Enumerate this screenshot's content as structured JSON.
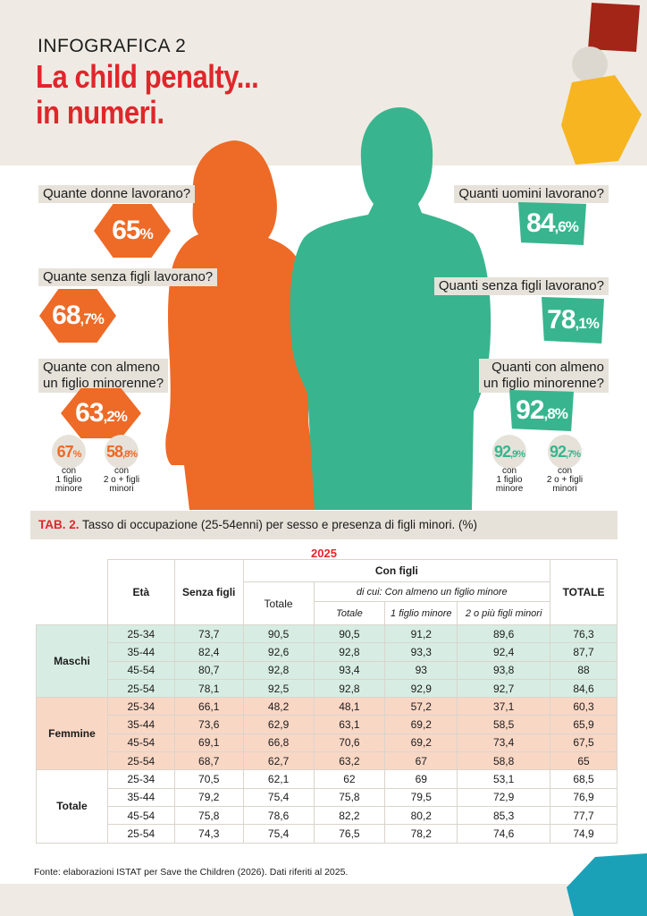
{
  "header": {
    "kicker": "INFOGRAFICA 2",
    "title_line1": "La child penalty...",
    "title_line2": "in numeri."
  },
  "colors": {
    "women": "#ee6a27",
    "men": "#38b58e",
    "accent": "#e0262b",
    "band": "#efebe4"
  },
  "women": {
    "q1": "Quante donne lavorano?",
    "v1_int": "65",
    "v1_pct": "%",
    "q2": "Quante senza figli lavorano?",
    "v2_int": "68",
    "v2_dec": ",7%",
    "q3_line1": "Quante con almeno",
    "q3_line2": "un figlio minorenne?",
    "v3_int": "63",
    "v3_dec": ",2%",
    "s1_int": "67",
    "s1_dec": "%",
    "s1_cap": [
      "con",
      "1 figlio",
      "minore"
    ],
    "s2_int": "58",
    "s2_dec": ",8%",
    "s2_cap": [
      "con",
      "2 o + figli",
      "minori"
    ]
  },
  "men": {
    "q1": "Quanti uomini lavorano?",
    "v1_int": "84",
    "v1_dec": ",6%",
    "q2": "Quanti senza figli lavorano?",
    "v2_int": "78",
    "v2_dec": ",1%",
    "q3_line1": "Quanti con almeno",
    "q3_line2": "un figlio minorenne?",
    "v3_int": "92",
    "v3_dec": ",8%",
    "s1_int": "92",
    "s1_dec": ",9%",
    "s1_cap": [
      "con",
      "1 figlio",
      "minore"
    ],
    "s2_int": "92",
    "s2_dec": ",7%",
    "s2_cap": [
      "con",
      "2 o + figli",
      "minori"
    ]
  },
  "table": {
    "tab_label": "TAB. 2.",
    "caption": "Tasso di occupazione (25-54enni) per sesso e presenza di figli minori. (%)",
    "year": "2025",
    "headers": {
      "eta": "Età",
      "senza_figli": "Senza figli",
      "con_figli": "Con figli",
      "totale_right": "TOTALE",
      "totale": "Totale",
      "di_cui": "di cui: Con almeno un figlio minore",
      "sub_totale": "Totale",
      "sub_1": "1 figlio minore",
      "sub_2": "2 o più figli minori"
    },
    "groups": [
      {
        "name": "Maschi",
        "rows": [
          [
            "25-34",
            "73,7",
            "90,5",
            "90,5",
            "91,2",
            "89,6",
            "76,3"
          ],
          [
            "35-44",
            "82,4",
            "92,6",
            "92,8",
            "93,3",
            "92,4",
            "87,7"
          ],
          [
            "45-54",
            "80,7",
            "92,8",
            "93,4",
            "93",
            "93,8",
            "88"
          ],
          [
            "25-54",
            "78,1",
            "92,5",
            "92,8",
            "92,9",
            "92,7",
            "84,6"
          ]
        ]
      },
      {
        "name": "Femmine",
        "rows": [
          [
            "25-34",
            "66,1",
            "48,2",
            "48,1",
            "57,2",
            "37,1",
            "60,3"
          ],
          [
            "35-44",
            "73,6",
            "62,9",
            "63,1",
            "69,2",
            "58,5",
            "65,9"
          ],
          [
            "45-54",
            "69,1",
            "66,8",
            "70,6",
            "69,2",
            "73,4",
            "67,5"
          ],
          [
            "25-54",
            "68,7",
            "62,7",
            "63,2",
            "67",
            "58,8",
            "65"
          ]
        ]
      },
      {
        "name": "Totale",
        "rows": [
          [
            "25-34",
            "70,5",
            "62,1",
            "62",
            "69",
            "53,1",
            "68,5"
          ],
          [
            "35-44",
            "79,2",
            "75,4",
            "75,8",
            "79,5",
            "72,9",
            "76,9"
          ],
          [
            "45-54",
            "75,8",
            "78,6",
            "82,2",
            "80,2",
            "85,3",
            "77,7"
          ],
          [
            "25-54",
            "74,3",
            "75,4",
            "76,5",
            "78,2",
            "74,6",
            "74,9"
          ]
        ]
      }
    ],
    "source": "Fonte: elaborazioni ISTAT per Save the Children (2026). Dati riferiti al 2025."
  }
}
